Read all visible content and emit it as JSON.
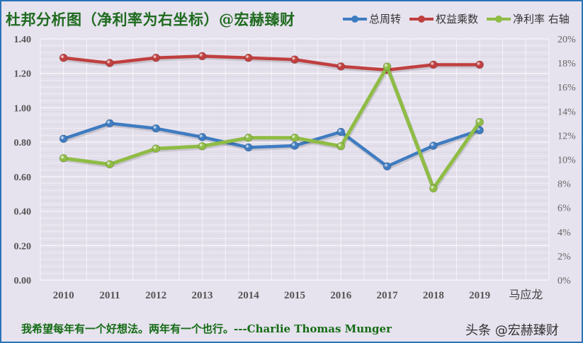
{
  "title": "杜邦分析图（净利率为右坐标）@宏赫臻财",
  "legend": [
    {
      "label": "总周转",
      "color": "#3f7cc1"
    },
    {
      "label": "权益乘数",
      "color": "#c0403f"
    },
    {
      "label": "净利率 右轴",
      "color": "#8fbc45"
    }
  ],
  "footer": {
    "quote": "我希望每年有一个好想法。两年有一个也行。---Charlie Thomas  Munger",
    "watermark": "头条 @宏赫臻财"
  },
  "chart_data": {
    "type": "line",
    "title": "杜邦分析图（净利率为右坐标）@宏赫臻财",
    "categories": [
      "2010",
      "2011",
      "2012",
      "2013",
      "2014",
      "2015",
      "2016",
      "2017",
      "2018",
      "2019"
    ],
    "x_extra_label": "马应龙",
    "series": [
      {
        "name": "总周转",
        "axis": "left",
        "color": "#3f7cc1",
        "values": [
          0.82,
          0.91,
          0.88,
          0.83,
          0.77,
          0.78,
          0.86,
          0.66,
          0.78,
          0.87
        ]
      },
      {
        "name": "权益乘数",
        "axis": "left",
        "color": "#c0403f",
        "values": [
          1.29,
          1.26,
          1.29,
          1.3,
          1.29,
          1.28,
          1.24,
          1.22,
          1.25,
          1.25
        ]
      },
      {
        "name": "净利率 右轴",
        "axis": "right",
        "color": "#8fbc45",
        "values": [
          0.101,
          0.096,
          0.109,
          0.111,
          0.118,
          0.118,
          0.111,
          0.177,
          0.076,
          0.131
        ]
      }
    ],
    "y_left": {
      "ticks": [
        "0.00",
        "0.20",
        "0.40",
        "0.60",
        "0.80",
        "1.00",
        "1.20",
        "1.40"
      ],
      "range": [
        0,
        1.4
      ]
    },
    "y_right": {
      "ticks": [
        "0%",
        "2%",
        "4%",
        "6%",
        "8%",
        "10%",
        "12%",
        "14%",
        "16%",
        "18%",
        "20%"
      ],
      "range": [
        0,
        0.2
      ]
    },
    "xlabel": "",
    "ylabel": "",
    "legend_position": "top-right",
    "grid": true
  }
}
